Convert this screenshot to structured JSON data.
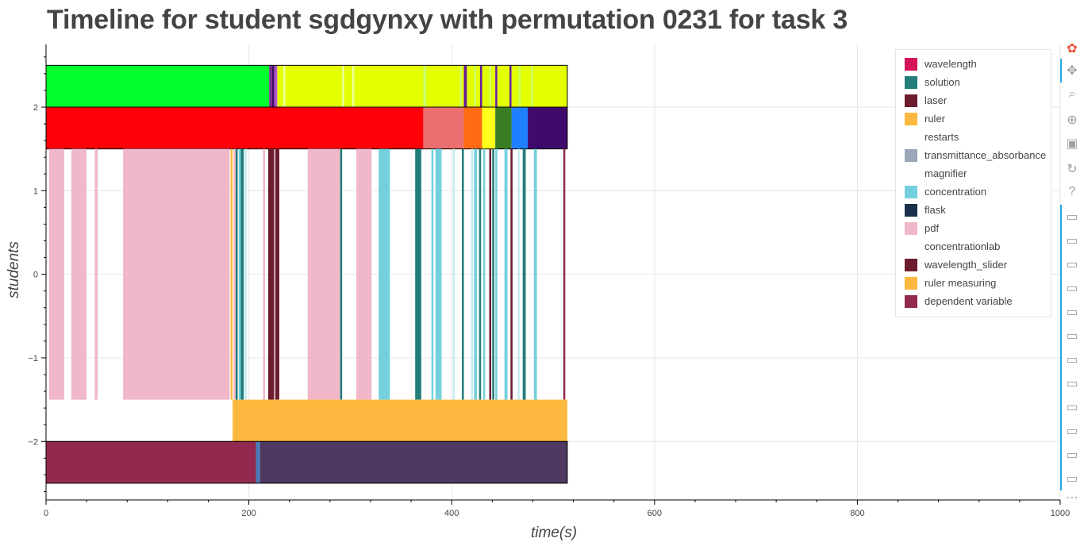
{
  "title": "Timeline for student sgdgynxy with permutation 0231 for task 3",
  "chart_data": {
    "type": "timeline",
    "title": "Timeline for student sgdgynxy with permutation 0231 for task 3",
    "xlabel": "time(s)",
    "ylabel": "students",
    "xlim": [
      0,
      1000
    ],
    "ylim": [
      -2.7,
      2.75
    ],
    "grid": true,
    "legend_position": "top-right",
    "x_ticks": [
      "0",
      "200",
      "400",
      "600",
      "800",
      "1000"
    ],
    "y_ticks": [
      "−2",
      "−1",
      "0",
      "1",
      "2"
    ],
    "legend": [
      {
        "label": "wavelength",
        "color": "#d6145a"
      },
      {
        "label": "solution",
        "color": "#227d7b"
      },
      {
        "label": "laser",
        "color": "#6b1c2e"
      },
      {
        "label": "ruler",
        "color": "#fdb83f"
      },
      {
        "label": "restarts",
        "color": "#ffffff"
      },
      {
        "label": "transmittance_absorbance",
        "color": "#9aa7b8"
      },
      {
        "label": "magnifier",
        "color": "#ffffff"
      },
      {
        "label": "concentration",
        "color": "#74d0dc"
      },
      {
        "label": "flask",
        "color": "#19304a"
      },
      {
        "label": "pdf",
        "color": "#f0b8c9"
      },
      {
        "label": "concentrationlab",
        "color": "#ffffff"
      },
      {
        "label": "wavelength_slider",
        "color": "#6b1c2e"
      },
      {
        "label": "ruler measuring",
        "color": "#fdb83f"
      },
      {
        "label": "dependent variable",
        "color": "#922a4f"
      }
    ],
    "rows": [
      {
        "name": "top band",
        "y0": 2.0,
        "y1": 2.5,
        "outline": true,
        "segments": [
          {
            "start": 0,
            "end": 220,
            "color": "#00ff2c"
          },
          {
            "start": 220,
            "end": 223,
            "color": "#7b2f8e"
          },
          {
            "start": 223,
            "end": 225,
            "color": "#3a1066"
          },
          {
            "start": 225,
            "end": 228,
            "color": "#b052c9"
          },
          {
            "start": 228,
            "end": 412,
            "color": "#e3ff00"
          },
          {
            "start": 412,
            "end": 415,
            "color": "#6a1a9a"
          },
          {
            "start": 415,
            "end": 428,
            "color": "#e3ff00"
          },
          {
            "start": 428,
            "end": 430,
            "color": "#6a1a9a"
          },
          {
            "start": 430,
            "end": 443,
            "color": "#e3ff00"
          },
          {
            "start": 443,
            "end": 445,
            "color": "#6a1a9a"
          },
          {
            "start": 445,
            "end": 457,
            "color": "#e3ff00"
          },
          {
            "start": 457,
            "end": 459,
            "color": "#6a1a9a"
          },
          {
            "start": 459,
            "end": 514,
            "color": "#e3ff00"
          },
          {
            "start": 234,
            "end": 236,
            "color": "#eeffa0"
          },
          {
            "start": 292,
            "end": 294,
            "color": "#eeffa0"
          },
          {
            "start": 302,
            "end": 304,
            "color": "#eeffa0"
          },
          {
            "start": 372,
            "end": 375,
            "color": "#ccff66"
          },
          {
            "start": 408,
            "end": 410,
            "color": "#ccff66"
          },
          {
            "start": 422,
            "end": 424,
            "color": "#ccff66"
          },
          {
            "start": 437,
            "end": 439,
            "color": "#ccff66"
          },
          {
            "start": 466,
            "end": 468,
            "color": "#ccff66"
          },
          {
            "start": 478,
            "end": 480,
            "color": "#ccff66"
          }
        ]
      },
      {
        "name": "second band",
        "y0": 1.5,
        "y1": 2.0,
        "outline": true,
        "segments": [
          {
            "start": 0,
            "end": 372,
            "color": "#ff0008"
          },
          {
            "start": 372,
            "end": 412,
            "color": "#ec6f6f"
          },
          {
            "start": 412,
            "end": 430,
            "color": "#ff6a13"
          },
          {
            "start": 430,
            "end": 443,
            "color": "#ffff1c"
          },
          {
            "start": 443,
            "end": 459,
            "color": "#3a7d22"
          },
          {
            "start": 459,
            "end": 475,
            "color": "#1f7fff"
          },
          {
            "start": 475,
            "end": 514,
            "color": "#3f0a6b"
          }
        ]
      },
      {
        "name": "tool events",
        "y0": -1.5,
        "y1": 1.5,
        "outline": false,
        "segments": [
          {
            "start": 3,
            "end": 18,
            "color": "#f0b8c9"
          },
          {
            "start": 25,
            "end": 40,
            "color": "#f0b8c9"
          },
          {
            "start": 48,
            "end": 51,
            "color": "#f0b8c9"
          },
          {
            "start": 76,
            "end": 181,
            "color": "#f0b8c9"
          },
          {
            "start": 182,
            "end": 184,
            "color": "#fdb83f"
          },
          {
            "start": 185,
            "end": 187,
            "color": "#f0b8c9"
          },
          {
            "start": 187,
            "end": 189,
            "color": "#227d7b"
          },
          {
            "start": 190,
            "end": 192,
            "color": "#74d0dc"
          },
          {
            "start": 192,
            "end": 195,
            "color": "#227d7b"
          },
          {
            "start": 196,
            "end": 198,
            "color": "#c8ecf2"
          },
          {
            "start": 214,
            "end": 216,
            "color": "#f0b8c9"
          },
          {
            "start": 219,
            "end": 225,
            "color": "#6b1c2e"
          },
          {
            "start": 226,
            "end": 230,
            "color": "#6b1c2e"
          },
          {
            "start": 258,
            "end": 290,
            "color": "#f0b8c9"
          },
          {
            "start": 290,
            "end": 292,
            "color": "#227d7b"
          },
          {
            "start": 306,
            "end": 321,
            "color": "#f0b8c9"
          },
          {
            "start": 328,
            "end": 339,
            "color": "#74d0dc"
          },
          {
            "start": 364,
            "end": 370,
            "color": "#227d7b"
          },
          {
            "start": 380,
            "end": 382,
            "color": "#74d0dc"
          },
          {
            "start": 384,
            "end": 390,
            "color": "#74d0dc"
          },
          {
            "start": 401,
            "end": 403,
            "color": "#c8ecf2"
          },
          {
            "start": 410,
            "end": 412,
            "color": "#227d7b"
          },
          {
            "start": 419,
            "end": 421,
            "color": "#c8ecf2"
          },
          {
            "start": 422,
            "end": 425,
            "color": "#74d0dc"
          },
          {
            "start": 427,
            "end": 429,
            "color": "#227d7b"
          },
          {
            "start": 431,
            "end": 433,
            "color": "#74d0dc"
          },
          {
            "start": 437,
            "end": 439,
            "color": "#6b1c2e"
          },
          {
            "start": 440,
            "end": 442,
            "color": "#227d7b"
          },
          {
            "start": 443,
            "end": 445,
            "color": "#74d0dc"
          },
          {
            "start": 452,
            "end": 455,
            "color": "#74d0dc"
          },
          {
            "start": 458,
            "end": 460,
            "color": "#6b1c2e"
          },
          {
            "start": 465,
            "end": 467,
            "color": "#c8ecf2"
          },
          {
            "start": 470,
            "end": 473,
            "color": "#227d7b"
          },
          {
            "start": 481,
            "end": 484,
            "color": "#74d0dc"
          },
          {
            "start": 510,
            "end": 512,
            "color": "#922a4f"
          }
        ]
      },
      {
        "name": "ruler measuring band",
        "y0": -2.0,
        "y1": -1.5,
        "outline": false,
        "segments": [
          {
            "start": 184,
            "end": 514,
            "color": "#fdb83f"
          }
        ]
      },
      {
        "name": "bottom band",
        "y0": -2.5,
        "y1": -2.0,
        "outline": true,
        "segments": [
          {
            "start": 0,
            "end": 207,
            "color": "#922a4f"
          },
          {
            "start": 207,
            "end": 211,
            "color": "#4a7ab8"
          },
          {
            "start": 211,
            "end": 514,
            "color": "#4f3861"
          }
        ]
      }
    ]
  },
  "toolbar": {
    "tools": [
      {
        "icon": "bokeh-logo-icon",
        "glyph": "✿"
      },
      {
        "icon": "pan-icon",
        "glyph": "✥"
      },
      {
        "icon": "box-zoom-icon",
        "glyph": "⌕"
      },
      {
        "icon": "wheel-zoom-icon",
        "glyph": "⊕"
      },
      {
        "icon": "save-icon",
        "glyph": "▣"
      },
      {
        "icon": "reset-icon",
        "glyph": "↻"
      },
      {
        "icon": "help-icon",
        "glyph": "?"
      },
      {
        "icon": "hover-icon",
        "glyph": "▭"
      },
      {
        "icon": "hover-icon",
        "glyph": "▭"
      },
      {
        "icon": "hover-icon",
        "glyph": "▭"
      },
      {
        "icon": "hover-icon",
        "glyph": "▭"
      },
      {
        "icon": "hover-icon",
        "glyph": "▭"
      },
      {
        "icon": "hover-icon",
        "glyph": "▭"
      },
      {
        "icon": "hover-icon",
        "glyph": "▭"
      },
      {
        "icon": "hover-icon",
        "glyph": "▭"
      },
      {
        "icon": "hover-icon",
        "glyph": "▭"
      },
      {
        "icon": "hover-icon",
        "glyph": "▭"
      },
      {
        "icon": "hover-icon",
        "glyph": "▭"
      },
      {
        "icon": "hover-icon",
        "glyph": "▭"
      },
      {
        "icon": "more-icon",
        "glyph": "⋯"
      }
    ]
  }
}
